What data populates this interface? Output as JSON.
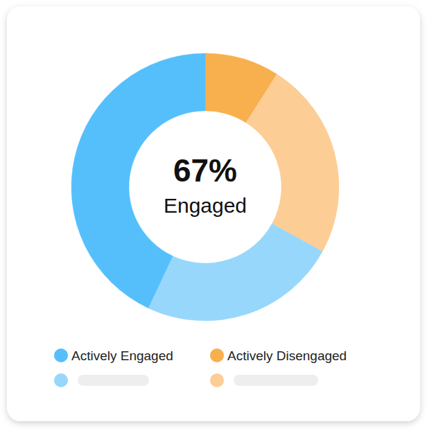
{
  "chart_data": {
    "type": "donut",
    "categories": [
      "Actively Disengaged",
      null,
      null,
      "Actively Engaged"
    ],
    "values": [
      9,
      24,
      24,
      43
    ],
    "colors": [
      "#f8af4d",
      "#fccd95",
      "#97d7fb",
      "#55bffc"
    ],
    "center_label": {
      "value": 67,
      "label": "67%"
    },
    "center_text": "Engaged",
    "legend": "bottom"
  }
}
